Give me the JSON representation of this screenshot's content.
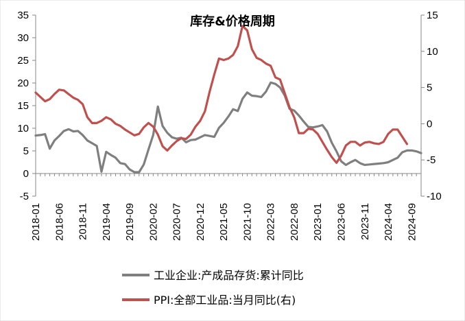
{
  "chart_data": {
    "type": "line",
    "title": "库存&价格周期",
    "x_tick_labels": [
      "2018-01",
      "2018-06",
      "2018-11",
      "2019-04",
      "2019-09",
      "2020-02",
      "2020-07",
      "2020-12",
      "2021-05",
      "2021-10",
      "2022-03",
      "2022-08",
      "2023-01",
      "2023-06",
      "2023-11",
      "2024-04",
      "2024-09"
    ],
    "x_start": "2018-01",
    "y_left": {
      "min": -5,
      "max": 35,
      "ticks": [
        -5,
        0,
        5,
        10,
        15,
        20,
        25,
        30,
        35
      ]
    },
    "y_right": {
      "min": -10,
      "max": 15,
      "ticks": [
        -10,
        -5,
        0,
        5,
        10,
        15
      ]
    },
    "legend_position": "bottom",
    "series": [
      {
        "name": "工业企业:产成品存货:累计同比",
        "axis": "left",
        "color": "#7f7f7f",
        "values": [
          8.4,
          8.5,
          8.7,
          5.5,
          7.3,
          8.3,
          9.4,
          9.8,
          9.3,
          9.4,
          8.5,
          7.3,
          6.7,
          6.1,
          0.4,
          4.8,
          4.1,
          3.5,
          2.3,
          2.1,
          0.9,
          0.3,
          0.3,
          2.0,
          5.3,
          8.5,
          14.8,
          10.5,
          9.0,
          8.0,
          7.7,
          7.9,
          6.9,
          7.4,
          7.5,
          8.0,
          8.5,
          8.3,
          8.1,
          10.1,
          11.2,
          12.6,
          14.2,
          13.8,
          16.5,
          17.9,
          17.2,
          17.1,
          16.9,
          18.1,
          20.1,
          19.8,
          19.0,
          17.2,
          14.3,
          13.9,
          12.8,
          11.5,
          10.3,
          10.2,
          10.4,
          10.7,
          9.3,
          6.8,
          4.9,
          2.7,
          1.9,
          2.5,
          3.0,
          2.3,
          1.9,
          2.0,
          2.1,
          2.2,
          2.3,
          2.5,
          3.0,
          3.5,
          4.7,
          5.1,
          5.1,
          4.9,
          4.5
        ]
      },
      {
        "name": "PPI:全部工业品:当月同比(右)",
        "axis": "right",
        "color": "#c0504d",
        "values": [
          4.3,
          3.7,
          3.1,
          3.4,
          4.1,
          4.7,
          4.6,
          4.1,
          3.6,
          3.3,
          2.7,
          0.9,
          0.1,
          0.1,
          0.4,
          0.9,
          0.6,
          0.0,
          -0.3,
          -0.8,
          -1.2,
          -1.6,
          -1.4,
          -0.5,
          0.1,
          -0.4,
          -1.5,
          -3.1,
          -3.7,
          -3.0,
          -2.4,
          -2.0,
          -2.1,
          -1.5,
          -0.4,
          0.4,
          1.7,
          4.4,
          6.8,
          9.0,
          8.8,
          9.0,
          9.5,
          10.7,
          13.5,
          12.9,
          10.3,
          9.1,
          8.8,
          8.3,
          8.0,
          6.4,
          6.1,
          4.2,
          2.3,
          0.9,
          -1.3,
          -1.3,
          -0.7,
          -0.8,
          -1.4,
          -2.5,
          -3.6,
          -4.6,
          -5.4,
          -4.4,
          -3.0,
          -2.5,
          -2.5,
          -3.0,
          -2.6,
          -2.5,
          -2.7,
          -2.8,
          -2.5,
          -1.4,
          -0.8,
          -0.8,
          -1.8,
          -2.8
        ]
      }
    ]
  }
}
